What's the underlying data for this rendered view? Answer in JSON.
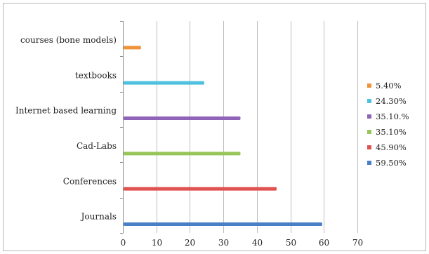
{
  "chart_data": {
    "type": "bar",
    "orientation": "horizontal",
    "categories": [
      "courses (bone models)",
      "textbooks",
      "Internet based learning",
      "Cad-Labs",
      "Conferences",
      "Journals"
    ],
    "values": [
      5.4,
      24.3,
      35.1,
      35.1,
      45.9,
      59.5
    ],
    "colors": [
      "#f0923a",
      "#4fc1df",
      "#8e63b8",
      "#97c55a",
      "#e0524f",
      "#4a7fc8"
    ],
    "xlim": [
      0,
      70
    ],
    "x_ticks": [
      "0",
      "10",
      "20",
      "30",
      "40",
      "50",
      "60",
      "70"
    ],
    "grid": true,
    "legend": {
      "placement": "right",
      "entries": [
        "5.40%",
        "24.30%",
        "35.10.%",
        "35.10%",
        "45.90%",
        "59.50%"
      ]
    },
    "title": "",
    "xlabel": "",
    "ylabel": ""
  }
}
